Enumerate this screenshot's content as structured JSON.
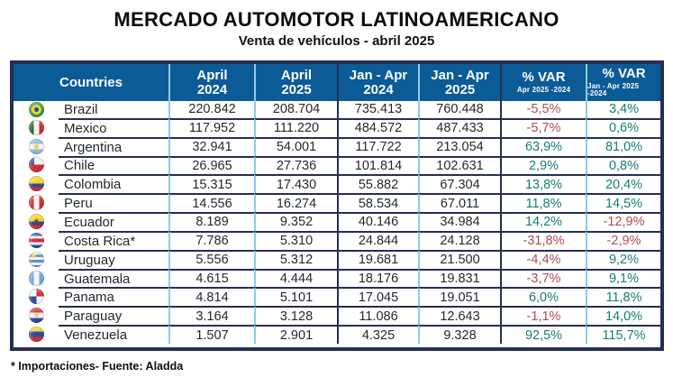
{
  "title": "MERCADO AUTOMOTOR LATINOAMERICANO",
  "subtitle": "Venta de vehículos - abril 2025",
  "footnote": "* Importaciones- Fuente: Aladda",
  "colors": {
    "header_bg": "#0B5B97",
    "outer_border_navy": "#252E54",
    "column_separator_light_blue": "#92C9E8",
    "positive_green": "#157F6B",
    "negative_red": "#B04A51",
    "body_text": "#26272F"
  },
  "header": {
    "countries": "Countries",
    "cols": [
      {
        "l1": "April",
        "l2": "2024"
      },
      {
        "l1": "April",
        "l2": "2025"
      },
      {
        "l1": "Jan - Apr",
        "l2": "2024"
      },
      {
        "l1": "Jan - Apr",
        "l2": "2025"
      },
      {
        "l1": "% VAR",
        "l2": "Apr 2025 -2024"
      },
      {
        "l1": "% VAR",
        "l2": "Jan - Apr 2025 -2024"
      }
    ]
  },
  "flag_icons": [
    "brazil-flag-icon",
    "mexico-flag-icon",
    "argentina-flag-icon",
    "chile-flag-icon",
    "colombia-flag-icon",
    "peru-flag-icon",
    "ecuador-flag-icon",
    "costa-rica-flag-icon",
    "uruguay-flag-icon",
    "guatemala-flag-icon",
    "panama-flag-icon",
    "paraguay-flag-icon",
    "venezuela-flag-icon"
  ],
  "chart_data": {
    "type": "table",
    "title": "MERCADO AUTOMOTOR LATINOAMERICANO",
    "subtitle": "Venta de vehículos - abril 2025",
    "columns": [
      "Countries",
      "April 2024",
      "April 2025",
      "Jan - Apr 2024",
      "Jan - Apr 2025",
      "% VAR Apr 2025 -2024",
      "% VAR Jan - Apr 2025 -2024"
    ],
    "rows": [
      [
        "Brazil",
        "220.842",
        "208.704",
        "735.413",
        "760.448",
        "-5,5%",
        "3,4%"
      ],
      [
        "Mexico",
        "117.952",
        "111.220",
        "484.572",
        "487.433",
        "-5,7%",
        "0,6%"
      ],
      [
        "Argentina",
        "32.941",
        "54.001",
        "117.722",
        "213.054",
        "63,9%",
        "81,0%"
      ],
      [
        "Chile",
        "26.965",
        "27.736",
        "101.814",
        "102.631",
        "2,9%",
        "0,8%"
      ],
      [
        "Colombia",
        "15.315",
        "17.430",
        "55.882",
        "67.304",
        "13,8%",
        "20,4%"
      ],
      [
        "Peru",
        "14.556",
        "16.274",
        "58.534",
        "67.011",
        "11,8%",
        "14,5%"
      ],
      [
        "Ecuador",
        "8.189",
        "9.352",
        "40.146",
        "34.984",
        "14,2%",
        "-12,9%"
      ],
      [
        "Costa Rica*",
        "7.786",
        "5.310",
        "24.844",
        "24.128",
        "-31,8%",
        "-2,9%"
      ],
      [
        "Uruguay",
        "5.556",
        "5.312",
        "19.681",
        "21.500",
        "-4,4%",
        "9,2%"
      ],
      [
        "Guatemala",
        "4.615",
        "4.444",
        "18.176",
        "19.831",
        "-3,7%",
        "9,1%"
      ],
      [
        "Panama",
        "4.814",
        "5.101",
        "17.045",
        "19.051",
        "6,0%",
        "11,8%"
      ],
      [
        "Paraguay",
        "3.164",
        "3.128",
        "11.086",
        "12.643",
        "-1,1%",
        "14,0%"
      ],
      [
        "Venezuela",
        "1.507",
        "2.901",
        "4.325",
        "9.328",
        "92,5%",
        "115,7%"
      ]
    ]
  }
}
